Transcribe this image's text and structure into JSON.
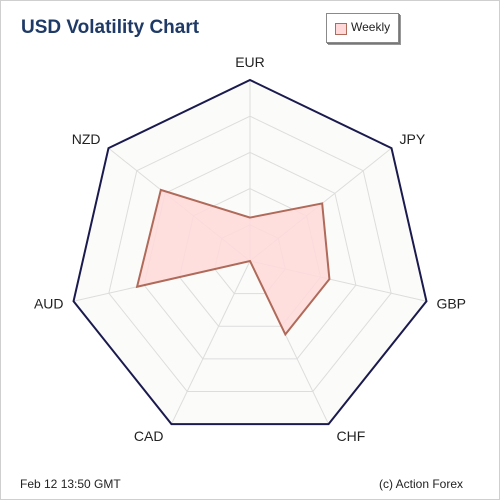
{
  "colors": {
    "frame": "#1a1a4e",
    "grid": "#dddddd",
    "fill": "#ffd9d9",
    "stroke": "#b06a5a",
    "title": "#1f3a66"
  },
  "chart_data": {
    "type": "radar",
    "title": "USD Volatility Chart",
    "categories": [
      "EUR",
      "JPY",
      "GBP",
      "CHF",
      "CAD",
      "AUD",
      "NZD"
    ],
    "series": [
      {
        "name": "Weekly",
        "values": [
          0.24,
          0.51,
          0.45,
          0.45,
          0.0,
          0.64,
          0.63
        ]
      }
    ],
    "rlim": [
      0,
      1
    ],
    "grid": true,
    "grid_levels": 5,
    "legend": "top-right"
  },
  "footer": {
    "timestamp": "Feb 12  13:50 GMT",
    "credit": "(c) Action Forex"
  }
}
